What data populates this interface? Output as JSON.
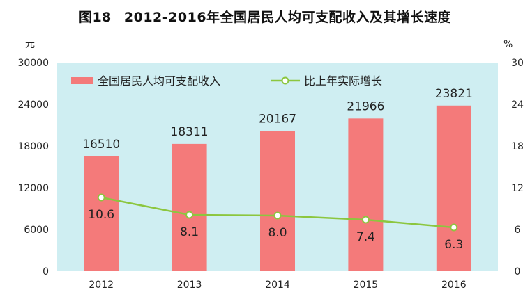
{
  "title": {
    "figure_no": "图18",
    "text": "2012-2016年全国居民人均可支配收入及其增长速度"
  },
  "chart_data": {
    "type": "bar+line",
    "categories": [
      "2012",
      "2013",
      "2014",
      "2015",
      "2016"
    ],
    "series": [
      {
        "name": "全国居民人均可支配收入",
        "type": "bar",
        "axis": "left",
        "values": [
          16510,
          18311,
          20167,
          21966,
          23821
        ],
        "color": "#f47a7a"
      },
      {
        "name": "比上年实际增长",
        "type": "line",
        "axis": "right",
        "values": [
          10.6,
          8.1,
          8.0,
          7.4,
          6.3
        ],
        "color": "#8cc63f"
      }
    ],
    "left_unit": "元",
    "right_unit": "%",
    "left_ylim": [
      0,
      30000
    ],
    "left_ticks": [
      "0",
      "6000",
      "12000",
      "18000",
      "24000",
      "30000"
    ],
    "right_ylim": [
      0,
      30
    ],
    "right_ticks": [
      "0",
      "6",
      "12",
      "18",
      "24",
      "30"
    ],
    "bar_labels": [
      "16510",
      "18311",
      "20167",
      "21966",
      "23821"
    ],
    "rate_labels": [
      "10.6",
      "8.1",
      "8.0",
      "7.4",
      "6.3"
    ],
    "legend_position": "top",
    "grid": false,
    "background": "#cfeef2"
  }
}
